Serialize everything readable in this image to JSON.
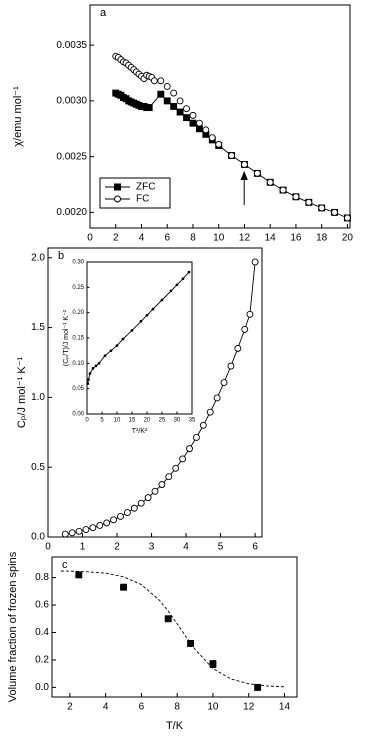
{
  "chart_data": [
    {
      "type": "scatter",
      "label": "a",
      "ylabel": "χ/emu mol⁻¹",
      "xlim": [
        0,
        20.2
      ],
      "ylim": [
        0.00186,
        0.00386
      ],
      "xticks": [
        0,
        2,
        4,
        6,
        8,
        10,
        12,
        14,
        16,
        18,
        20
      ],
      "yticks": [
        {
          "value": 0.002,
          "label": "0.0020"
        },
        {
          "value": 0.0025,
          "label": "0.0025"
        },
        {
          "value": 0.003,
          "label": "0.0030"
        },
        {
          "value": 0.0035,
          "label": "0.0035"
        }
      ],
      "legend": "lower left",
      "series": [
        {
          "name": "ZFC",
          "color": "#000000",
          "marker": "square",
          "filled": true,
          "line": "solid",
          "x": [
            2,
            2.2,
            2.4,
            2.6,
            2.8,
            3,
            3.2,
            3.4,
            3.6,
            3.8,
            4,
            4.2,
            4.4,
            4.6,
            5.5,
            6,
            6.5,
            7,
            7.5,
            8,
            8.5,
            9,
            9.5,
            10,
            11,
            12,
            13,
            14,
            15,
            16,
            17,
            18,
            19,
            20
          ],
          "values": [
            0.00307,
            0.00306,
            0.00305,
            0.00303,
            0.00302,
            0.003,
            0.00299,
            0.00298,
            0.00297,
            0.00296,
            0.00295,
            0.00295,
            0.00294,
            0.00294,
            0.00306,
            0.003,
            0.00295,
            0.0029,
            0.00285,
            0.0028,
            0.00275,
            0.0027,
            0.00265,
            0.0026,
            0.00251,
            0.00243,
            0.00235,
            0.00227,
            0.0022,
            0.00214,
            0.00209,
            0.00204,
            0.002,
            0.00195
          ]
        },
        {
          "name": "FC",
          "color": "#000000",
          "marker": "circle",
          "filled": false,
          "line": "none",
          "x": [
            2,
            2.2,
            2.4,
            2.6,
            2.8,
            3,
            3.2,
            3.4,
            3.6,
            3.8,
            4,
            4.2,
            4.4,
            4.6,
            4.8,
            5,
            5.5,
            6,
            6.5,
            7,
            7.5,
            8,
            8.5,
            9,
            9.5,
            10,
            11,
            12,
            13,
            14,
            15,
            16,
            17,
            18,
            19,
            20
          ],
          "values": [
            0.0034,
            0.00339,
            0.00337,
            0.00335,
            0.00334,
            0.00332,
            0.0033,
            0.00328,
            0.00326,
            0.00324,
            0.00322,
            0.0032,
            0.00323,
            0.00322,
            0.00321,
            0.00318,
            0.00318,
            0.00313,
            0.00307,
            0.003,
            0.00293,
            0.00287,
            0.0028,
            0.00274,
            0.00267,
            0.00261,
            0.00251,
            0.00243,
            0.00235,
            0.00227,
            0.0022,
            0.00214,
            0.00209,
            0.00204,
            0.002,
            0.00195
          ]
        }
      ]
    },
    {
      "type": "scatter",
      "label": "b",
      "ylabel": "Cₚ/J mol⁻¹ K⁻¹",
      "xlim": [
        0,
        6.2
      ],
      "ylim": [
        0,
        2.07
      ],
      "xticks": [
        0,
        1,
        2,
        3,
        4,
        5,
        6
      ],
      "yticks": [
        {
          "value": 0,
          "label": "0.0"
        },
        0.5,
        {
          "value": 1,
          "label": "1.0"
        },
        1.5,
        {
          "value": 2,
          "label": "2.0"
        }
      ],
      "series": [
        {
          "color": "#000000",
          "marker": "circle",
          "filled": false,
          "line": "solid",
          "x": [
            0.5,
            0.7,
            0.9,
            1.1,
            1.3,
            1.5,
            1.7,
            1.9,
            2.1,
            2.3,
            2.5,
            2.7,
            2.9,
            3.1,
            3.3,
            3.5,
            3.7,
            3.9,
            4.1,
            4.3,
            4.5,
            4.7,
            4.9,
            5.1,
            5.3,
            5.5,
            5.7,
            5.85,
            6.0
          ],
          "values": [
            0.021,
            0.03,
            0.041,
            0.053,
            0.067,
            0.083,
            0.101,
            0.123,
            0.147,
            0.175,
            0.206,
            0.242,
            0.282,
            0.327,
            0.376,
            0.432,
            0.492,
            0.559,
            0.633,
            0.713,
            0.8,
            0.894,
            0.996,
            1.106,
            1.224,
            1.351,
            1.487,
            1.595,
            1.97
          ]
        }
      ]
    },
    {
      "type": "scatter",
      "xlabel": "T²/K²",
      "ylabel": "(Cₚ/T)/J mol⁻¹ K⁻²",
      "xlim": [
        0,
        35
      ],
      "ylim": [
        0,
        0.3
      ],
      "xticks": [
        0,
        5,
        10,
        15,
        20,
        25,
        30,
        35
      ],
      "yticks": [
        {
          "value": 0,
          "label": "0.00"
        },
        0.05,
        {
          "value": 0.1,
          "label": "0.10"
        },
        0.15,
        {
          "value": 0.2,
          "label": "0.20"
        },
        0.25,
        {
          "value": 0.3,
          "label": "0.30"
        }
      ],
      "series": [
        {
          "color": "#000000",
          "marker": "dot",
          "filled": true,
          "line": "solid",
          "x": [
            0.25,
            0.5,
            1,
            2,
            3,
            4,
            6,
            8,
            10,
            12,
            15,
            18,
            20,
            22,
            25,
            28,
            30,
            32,
            34
          ],
          "values": [
            0.06,
            0.068,
            0.08,
            0.09,
            0.095,
            0.1,
            0.115,
            0.125,
            0.135,
            0.148,
            0.165,
            0.183,
            0.195,
            0.207,
            0.225,
            0.243,
            0.255,
            0.267,
            0.28
          ]
        }
      ]
    },
    {
      "type": "scatter",
      "label": "c",
      "xlabel": "T/K",
      "ylabel": "Volume fraction of frozen spins",
      "xlim": [
        1,
        14.7
      ],
      "ylim": [
        -0.07,
        0.95
      ],
      "xticks": [
        2,
        4,
        6,
        8,
        10,
        12,
        14
      ],
      "yticks": [
        {
          "value": 0,
          "label": "0.0"
        },
        0.2,
        0.4,
        0.6,
        0.8
      ],
      "series": [
        {
          "color": "#000000",
          "marker": "none",
          "filled": false,
          "line": "dashed",
          "x": [
            1.5,
            2,
            3,
            4,
            5,
            6,
            7,
            7.5,
            8,
            8.5,
            9,
            10,
            11,
            12,
            13,
            14
          ],
          "values": [
            0.848,
            0.847,
            0.8425,
            0.832,
            0.806,
            0.749,
            0.636,
            0.556,
            0.4635,
            0.367,
            0.277,
            0.138,
            0.062,
            0.026,
            0.0107,
            0.0043
          ]
        },
        {
          "color": "#000000",
          "marker": "square",
          "filled": true,
          "line": "none",
          "x": [
            2.5,
            5,
            7.5,
            8.75,
            10,
            12.5
          ],
          "values": [
            0.82,
            0.73,
            0.5,
            0.32,
            0.17,
            0
          ],
          "errors": [
            0.01,
            0.02,
            0.015,
            0.015,
            0.025,
            0.01
          ]
        }
      ]
    }
  ]
}
